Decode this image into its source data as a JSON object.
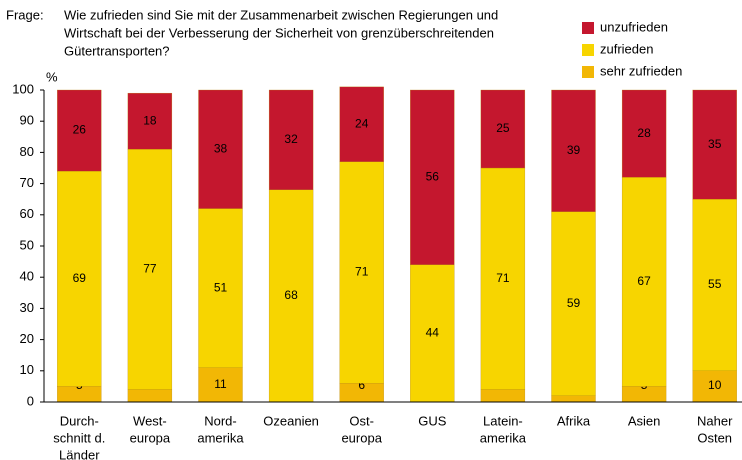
{
  "chart_data": {
    "type": "stacked_bar",
    "title_prefix": "Frage:",
    "title": [
      "Wie zufrieden sind Sie mit der Zusammenarbeit zwischen Regierungen und",
      "Wirtschaft bei der Verbesserung der Sicherheit von grenzüberschreitenden",
      "Gütertransporten?"
    ],
    "y_unit": "%",
    "categories": [
      [
        "Durch-",
        "schnitt d.",
        "Länder"
      ],
      [
        "West-",
        "europa"
      ],
      [
        "Nord-",
        "amerika"
      ],
      [
        "Ozeanien"
      ],
      [
        "Ost-",
        "europa"
      ],
      [
        "GUS"
      ],
      [
        "Latein-",
        "amerika"
      ],
      [
        "Afrika"
      ],
      [
        "Asien"
      ],
      [
        "Naher",
        "Osten"
      ]
    ],
    "series": [
      {
        "name": "sehr zufrieden",
        "color": "#f2b705",
        "values": [
          5,
          4,
          11,
          0,
          6,
          0,
          4,
          2,
          5,
          10
        ]
      },
      {
        "name": "zufrieden",
        "color": "#f7d500",
        "values": [
          69,
          77,
          51,
          68,
          71,
          44,
          71,
          59,
          67,
          55
        ]
      },
      {
        "name": "unzufrieden",
        "color": "#c4172e",
        "values": [
          26,
          18,
          38,
          32,
          24,
          56,
          25,
          39,
          28,
          35
        ]
      }
    ],
    "ylim": [
      0,
      100
    ],
    "yticks": [
      0,
      10,
      20,
      30,
      40,
      50,
      60,
      70,
      80,
      90,
      100
    ],
    "grid": false,
    "legend": "top-right"
  }
}
